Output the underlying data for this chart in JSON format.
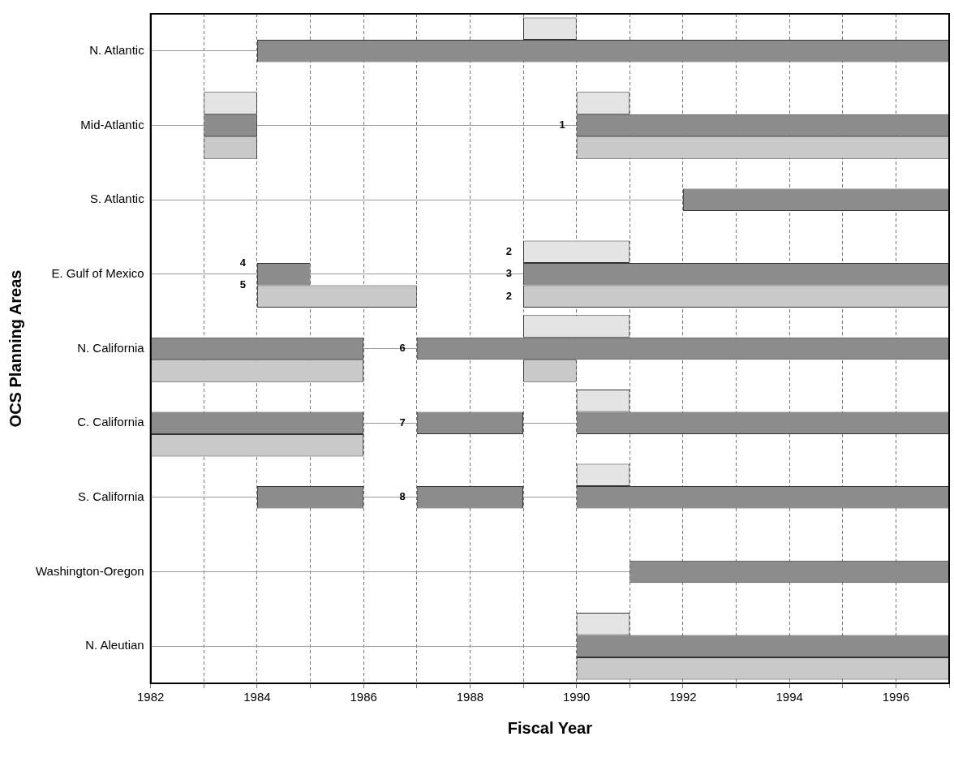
{
  "chart_data": {
    "type": "bar",
    "orientation": "horizontal",
    "xlabel": "Fiscal Year",
    "ylabel": "OCS Planning Areas",
    "categories": [
      "N. Atlantic",
      "Mid-Atlantic",
      "S. Atlantic",
      "E. Gulf of Mexico",
      "N. California",
      "C. California",
      "S. California",
      "Washington-Oregon",
      "N. Aleutian"
    ],
    "xlim": [
      1982,
      1997
    ],
    "xticks": [
      1982,
      {
        "value": 1983,
        "label": null
      },
      1984,
      {
        "value": 1985,
        "label": null
      },
      1986,
      {
        "value": 1987,
        "label": null
      },
      1988,
      {
        "value": 1989,
        "label": null
      },
      1990,
      {
        "value": 1991,
        "label": null
      },
      1992,
      {
        "value": 1993,
        "label": null
      },
      1994,
      {
        "value": 1995,
        "label": null
      },
      1996,
      {
        "value": 1997,
        "label": null
      }
    ],
    "grid": true,
    "legend": false,
    "annotations": [
      {
        "text": "1",
        "x": 1990,
        "y": "Mid-Atlantic"
      },
      {
        "text": "2",
        "x": 1989,
        "y": "E. Gulf of Mexico"
      },
      {
        "text": "3",
        "x": 1989,
        "y": "E. Gulf of Mexico"
      },
      {
        "text": "2",
        "x": 1989,
        "y": "E. Gulf of Mexico"
      },
      {
        "text": "4",
        "x": 1984,
        "y": "E. Gulf of Mexico"
      },
      {
        "text": "5",
        "x": 1984,
        "y": "E. Gulf of Mexico"
      },
      {
        "text": "6",
        "x": 1987,
        "y": "N. California"
      },
      {
        "text": "7",
        "x": 1987,
        "y": "C. California"
      },
      {
        "text": "8",
        "x": 1987,
        "y": "S. California"
      }
    ],
    "series": [
      {
        "color": "#e4e4e4",
        "base": [
          1989,
          1983,
          null,
          1989,
          1989,
          1990,
          1990,
          null,
          1990
        ],
        "values": [
          1,
          1,
          null,
          2,
          2,
          1,
          1,
          null,
          1
        ]
      },
      {
        "color": "#e4e4e4",
        "base": [
          null,
          1990,
          null,
          null,
          null,
          null,
          null,
          null,
          null
        ],
        "values": [
          null,
          1,
          null,
          null,
          null,
          null,
          null,
          null,
          null
        ]
      },
      {
        "color": "#8c8c8c",
        "base": [
          1984,
          1983,
          1992,
          1984,
          1982,
          1982,
          1984,
          1991,
          1990
        ],
        "values": [
          13,
          1,
          5,
          1,
          4,
          4,
          2,
          6,
          7
        ]
      },
      {
        "color": "#8c8c8c",
        "base": [
          null,
          1990,
          null,
          1989,
          1987,
          1987,
          1987,
          null,
          null
        ],
        "values": [
          null,
          7,
          null,
          8,
          10,
          2,
          2,
          null,
          null
        ]
      },
      {
        "color": "#8c8c8c",
        "base": [
          null,
          null,
          null,
          null,
          null,
          1990,
          1990,
          null,
          null
        ],
        "values": [
          null,
          null,
          null,
          null,
          null,
          7,
          7,
          null,
          null
        ]
      },
      {
        "color": "#c9c9c9",
        "base": [
          null,
          1983,
          null,
          1984,
          1982,
          1982,
          null,
          null,
          1990
        ],
        "values": [
          null,
          1,
          null,
          3,
          4,
          4,
          null,
          null,
          7
        ]
      },
      {
        "color": "#c9c9c9",
        "base": [
          null,
          1990,
          null,
          1989,
          1989,
          null,
          null,
          null,
          null
        ],
        "values": [
          null,
          7,
          null,
          8,
          1,
          null,
          null,
          null,
          null
        ]
      }
    ]
  }
}
